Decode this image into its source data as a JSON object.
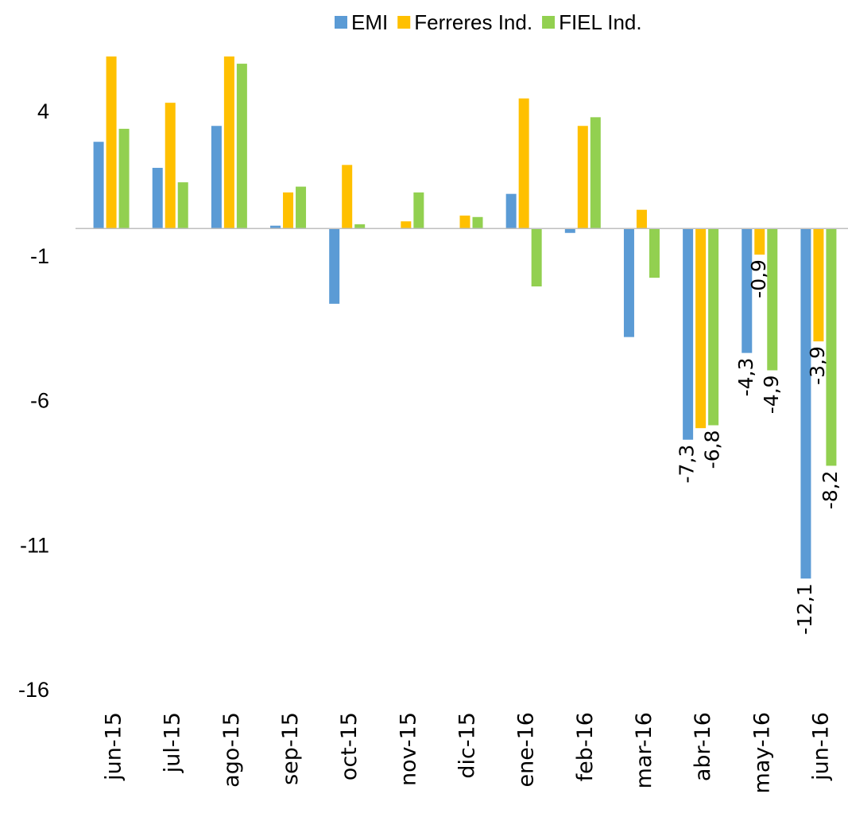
{
  "chart_data": {
    "type": "bar",
    "categories": [
      "jun-15",
      "jul-15",
      "ago-15",
      "sep-15",
      "oct-15",
      "nov-15",
      "dic-15",
      "ene-16",
      "feb-16",
      "mar-16",
      "abr-16",
      "may-16",
      "jun-16"
    ],
    "series": [
      {
        "name": "EMI",
        "color": "#5b9bd5",
        "values": [
          3.0,
          2.1,
          3.55,
          0.1,
          -2.6,
          0,
          0,
          1.2,
          -0.15,
          -3.75,
          -7.3,
          -4.3,
          -12.1
        ],
        "value_labels": [
          null,
          null,
          null,
          null,
          null,
          null,
          null,
          null,
          null,
          null,
          "-7,3",
          "-4,3",
          "-12,1"
        ]
      },
      {
        "name": "Ferreres Ind.",
        "color": "#ffc000",
        "values": [
          5.95,
          4.35,
          5.95,
          1.25,
          2.2,
          0.25,
          0.45,
          4.5,
          3.55,
          0.65,
          -6.9,
          -0.9,
          -3.9
        ],
        "value_labels": [
          null,
          null,
          null,
          null,
          null,
          null,
          null,
          null,
          null,
          null,
          null,
          "-0,9",
          "-3,9"
        ]
      },
      {
        "name": "FIEL Ind.",
        "color": "#92d050",
        "values": [
          3.45,
          1.6,
          5.7,
          1.45,
          0.15,
          1.25,
          0.4,
          -2.0,
          3.85,
          -1.7,
          -6.8,
          -4.9,
          -8.2
        ],
        "value_labels": [
          null,
          null,
          null,
          null,
          null,
          null,
          null,
          null,
          null,
          null,
          "-6,8",
          "-4,9",
          "-8,2"
        ]
      }
    ],
    "ylim": [
      -16,
      6.5
    ],
    "yticks": [
      4,
      -1,
      -6,
      -11,
      -16
    ],
    "grid": false,
    "legend": "top"
  }
}
